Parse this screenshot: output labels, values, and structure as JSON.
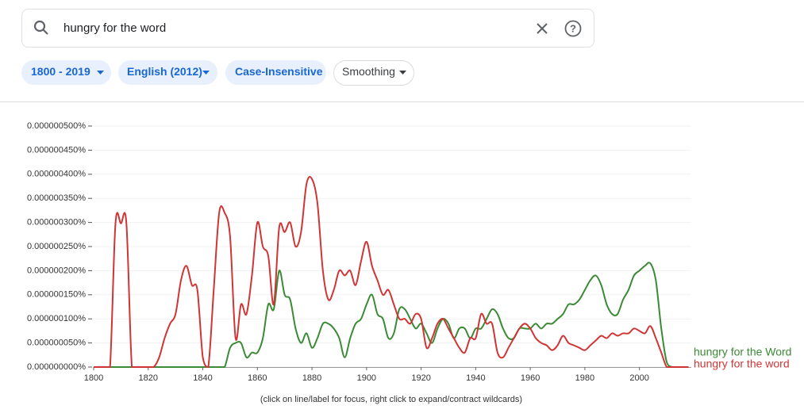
{
  "search": {
    "query": "hungry for the word"
  },
  "chips": [
    "1800 - 2019",
    "English (2012)",
    "Case-Insensitive",
    "Smoothing"
  ],
  "footnote": "(click on line/label for focus, right click to expand/contract wildcards)",
  "chart_data": {
    "type": "line",
    "x": [
      1800,
      1802,
      1804,
      1806,
      1808,
      1810,
      1812,
      1814,
      1816,
      1818,
      1820,
      1822,
      1824,
      1826,
      1828,
      1830,
      1832,
      1834,
      1836,
      1838,
      1840,
      1842,
      1844,
      1846,
      1848,
      1850,
      1852,
      1854,
      1856,
      1858,
      1860,
      1862,
      1864,
      1866,
      1868,
      1870,
      1872,
      1874,
      1876,
      1878,
      1880,
      1882,
      1884,
      1886,
      1888,
      1890,
      1892,
      1894,
      1896,
      1898,
      1900,
      1902,
      1904,
      1906,
      1908,
      1910,
      1912,
      1914,
      1916,
      1918,
      1920,
      1922,
      1924,
      1926,
      1928,
      1930,
      1932,
      1934,
      1936,
      1938,
      1940,
      1942,
      1944,
      1946,
      1948,
      1950,
      1952,
      1954,
      1956,
      1958,
      1960,
      1962,
      1964,
      1966,
      1968,
      1970,
      1972,
      1974,
      1976,
      1978,
      1980,
      1982,
      1984,
      1986,
      1988,
      1990,
      1992,
      1994,
      1996,
      1998,
      2000,
      2002,
      2004,
      2006,
      2008,
      2010,
      2012,
      2014,
      2016,
      2018
    ],
    "series": [
      {
        "name": "hungry for the Word",
        "color": "#3b8a35",
        "values": [
          0,
          0,
          0,
          0,
          0,
          0,
          0,
          0,
          0,
          0,
          0,
          0,
          0,
          0,
          0,
          0,
          0,
          0,
          0,
          0,
          0,
          0,
          0,
          0,
          0,
          4e-08,
          5e-08,
          5e-08,
          2e-08,
          3e-08,
          3e-08,
          6e-08,
          1.3e-07,
          1.2e-07,
          2e-07,
          1.5e-07,
          1.4e-07,
          8e-08,
          5e-08,
          7e-08,
          4e-08,
          6e-08,
          9e-08,
          9e-08,
          8e-08,
          6e-08,
          2e-08,
          6e-08,
          9e-08,
          1e-07,
          1.3e-07,
          1.5e-07,
          1.1e-07,
          1e-07,
          6e-08,
          7e-08,
          1.2e-07,
          1.2e-07,
          1e-07,
          8e-08,
          9e-08,
          7e-08,
          5e-08,
          8e-08,
          1e-07,
          9e-08,
          6e-08,
          8e-08,
          8e-08,
          6e-08,
          8e-08,
          8e-08,
          1e-07,
          1.2e-07,
          1.1e-07,
          8e-08,
          6e-08,
          6e-08,
          8e-08,
          8e-08,
          8e-08,
          9e-08,
          8e-08,
          9e-08,
          9e-08,
          1e-07,
          1.1e-07,
          1.3e-07,
          1.3e-07,
          1.4e-07,
          1.6e-07,
          1.8e-07,
          1.9e-07,
          1.7e-07,
          1.3e-07,
          1.1e-07,
          1.1e-07,
          1.4e-07,
          1.6e-07,
          1.9e-07,
          2e-07,
          2.1e-07,
          2.15e-07,
          1.8e-07,
          8e-08,
          1e-08,
          0,
          0,
          0,
          0
        ]
      },
      {
        "name": "hungry for the word",
        "color": "#d03536",
        "values": [
          0,
          0,
          0,
          0,
          2.98e-07,
          2.98e-07,
          2.98e-07,
          0,
          0,
          0,
          0,
          0,
          2e-08,
          6e-08,
          9e-08,
          1.1e-07,
          1.8e-07,
          2.1e-07,
          1.7e-07,
          1.6e-07,
          2e-08,
          0,
          1.6e-07,
          3.2e-07,
          3.2e-07,
          2.7e-07,
          6e-08,
          1.3e-07,
          1.1e-07,
          1.9e-07,
          3e-07,
          2.5e-07,
          2.3e-07,
          1.3e-07,
          2.9e-07,
          2.8e-07,
          3e-07,
          2.5e-07,
          2.8e-07,
          3.8e-07,
          3.9e-07,
          3.4e-07,
          2e-07,
          1.4e-07,
          1.6e-07,
          2e-07,
          1.9e-07,
          2e-07,
          1.7e-07,
          2.2e-07,
          2.6e-07,
          2.1e-07,
          1.8e-07,
          1.5e-07,
          1.6e-07,
          1.3e-07,
          1e-07,
          1e-07,
          9e-08,
          1.1e-07,
          1e-07,
          4e-08,
          6e-08,
          9e-08,
          1e-07,
          8e-08,
          6e-08,
          4e-08,
          3e-08,
          6e-08,
          6e-08,
          1.1e-07,
          9e-08,
          9e-08,
          3e-08,
          2e-08,
          4e-08,
          6e-08,
          8e-08,
          9e-08,
          8e-08,
          6e-08,
          5e-08,
          4.5e-08,
          3.5e-08,
          4.5e-08,
          6.5e-08,
          5e-08,
          4.5e-08,
          4e-08,
          3.5e-08,
          4.5e-08,
          5.5e-08,
          6.5e-08,
          6e-08,
          7e-08,
          6.5e-08,
          7e-08,
          7e-08,
          8e-08,
          7.5e-08,
          7e-08,
          8.5e-08,
          6e-08,
          3e-08,
          0,
          0,
          0,
          0,
          0
        ]
      }
    ],
    "xlim": [
      1800,
      2019
    ],
    "xticks": [
      1800,
      1820,
      1840,
      1860,
      1880,
      1900,
      1920,
      1940,
      1960,
      1980,
      2000
    ],
    "ylim": [
      0,
      5e-07
    ],
    "yticks": [
      {
        "value": 0,
        "label": "0.000000000%"
      },
      {
        "value": 5e-08,
        "label": "0.000000050%"
      },
      {
        "value": 1e-07,
        "label": "0.000000100%"
      },
      {
        "value": 1.5e-07,
        "label": "0.000000150%"
      },
      {
        "value": 2e-07,
        "label": "0.000000200%"
      },
      {
        "value": 2.5e-07,
        "label": "0.000000250%"
      },
      {
        "value": 3e-07,
        "label": "0.000000300%"
      },
      {
        "value": 3.5e-07,
        "label": "0.000000350%"
      },
      {
        "value": 4e-07,
        "label": "0.000000400%"
      },
      {
        "value": 4.5e-07,
        "label": "0.000000450%"
      },
      {
        "value": 5e-07,
        "label": "0.000000500%"
      }
    ],
    "grid": true
  }
}
